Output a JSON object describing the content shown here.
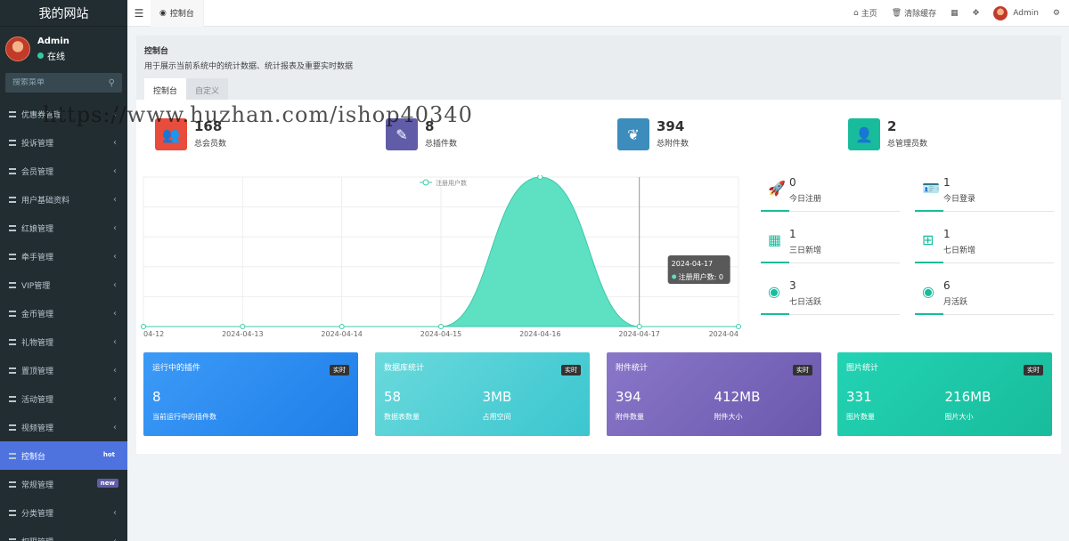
{
  "sidebar": {
    "brand": "我的网站",
    "user": {
      "name": "Admin",
      "status": "在线"
    },
    "search_placeholder": "搜索菜单",
    "items": [
      {
        "label": "优惠券管理",
        "active": false
      },
      {
        "label": "投诉管理",
        "active": false
      },
      {
        "label": "会员管理",
        "active": false
      },
      {
        "label": "用户基础资料",
        "active": false
      },
      {
        "label": "红娘管理",
        "active": false
      },
      {
        "label": "牵手管理",
        "active": false
      },
      {
        "label": "VIP管理",
        "active": false
      },
      {
        "label": "金币管理",
        "active": false
      },
      {
        "label": "礼物管理",
        "active": false
      },
      {
        "label": "置顶管理",
        "active": false
      },
      {
        "label": "活动管理",
        "active": false
      },
      {
        "label": "视频管理",
        "active": false
      },
      {
        "label": "控制台",
        "active": true,
        "badge": "hot"
      },
      {
        "label": "常规管理",
        "active": false,
        "badge": "new"
      },
      {
        "label": "分类管理",
        "active": false
      },
      {
        "label": "权限管理",
        "active": false
      }
    ]
  },
  "topbar": {
    "tab": "控制台",
    "home": "主页",
    "clear_cache": "清除缓存",
    "admin": "Admin"
  },
  "page": {
    "title": "控制台",
    "description": "用于展示当前系统中的统计数据、统计报表及重要实时数据",
    "tabs": [
      "控制台",
      "自定义"
    ]
  },
  "stats": [
    {
      "value": "168",
      "label": "总会员数",
      "color": "#e74c3c",
      "icon": "users-icon"
    },
    {
      "value": "8",
      "label": "总插件数",
      "color": "#605ca8",
      "icon": "magic-icon"
    },
    {
      "value": "394",
      "label": "总附件数",
      "color": "#3c8dbc",
      "icon": "leaf-icon"
    },
    {
      "value": "2",
      "label": "总管理员数",
      "color": "#18bc9c",
      "icon": "user-icon"
    }
  ],
  "mini_stats": [
    {
      "value": "0",
      "label": "今日注册",
      "icon": "rocket-icon"
    },
    {
      "value": "1",
      "label": "今日登录",
      "icon": "id-card-icon"
    },
    {
      "value": "1",
      "label": "三日新增",
      "icon": "calendar-icon"
    },
    {
      "value": "1",
      "label": "七日新增",
      "icon": "calendar-plus-icon"
    },
    {
      "value": "3",
      "label": "七日活跃",
      "icon": "user-circle-icon"
    },
    {
      "value": "6",
      "label": "月活跃",
      "icon": "user-circle-icon"
    }
  ],
  "cards": [
    {
      "title": "运行中的插件",
      "tag": "实时",
      "values": [
        {
          "num": "8",
          "label": "当前运行中的插件数"
        }
      ],
      "color_from": "#3c9af7",
      "color_to": "#1f7fe8"
    },
    {
      "title": "数据库统计",
      "tag": "实时",
      "values": [
        {
          "num": "58",
          "label": "数据表数量"
        },
        {
          "num": "3MB",
          "label": "占用空间"
        }
      ],
      "color_from": "#6ad9dc",
      "color_to": "#3bc6cf"
    },
    {
      "title": "附件统计",
      "tag": "实时",
      "values": [
        {
          "num": "394",
          "label": "附件数量"
        },
        {
          "num": "412MB",
          "label": "附件大小"
        }
      ],
      "color_from": "#8a77c9",
      "color_to": "#6a58ad"
    },
    {
      "title": "图片统计",
      "tag": "实时",
      "values": [
        {
          "num": "331",
          "label": "图片数量"
        },
        {
          "num": "216MB",
          "label": "图片大小"
        }
      ],
      "color_from": "#22d3b3",
      "color_to": "#18bc9c"
    }
  ],
  "chart_data": {
    "type": "area",
    "series": [
      {
        "name": "注册用户数",
        "values": [
          0,
          0,
          0,
          0,
          1,
          0,
          0
        ]
      }
    ],
    "categories": [
      "04-12",
      "2024-04-13",
      "2024-04-14",
      "2024-04-15",
      "2024-04-16",
      "2024-04-17",
      "2024-04"
    ],
    "ylim": [
      0,
      1
    ],
    "grid": true,
    "legend": "top-center",
    "tooltip": {
      "title": "2024-04-17",
      "label": "注册用户数: 0"
    },
    "color": "#5ee0c2"
  },
  "watermark": "https://www.huzhan.com/ishop40340"
}
